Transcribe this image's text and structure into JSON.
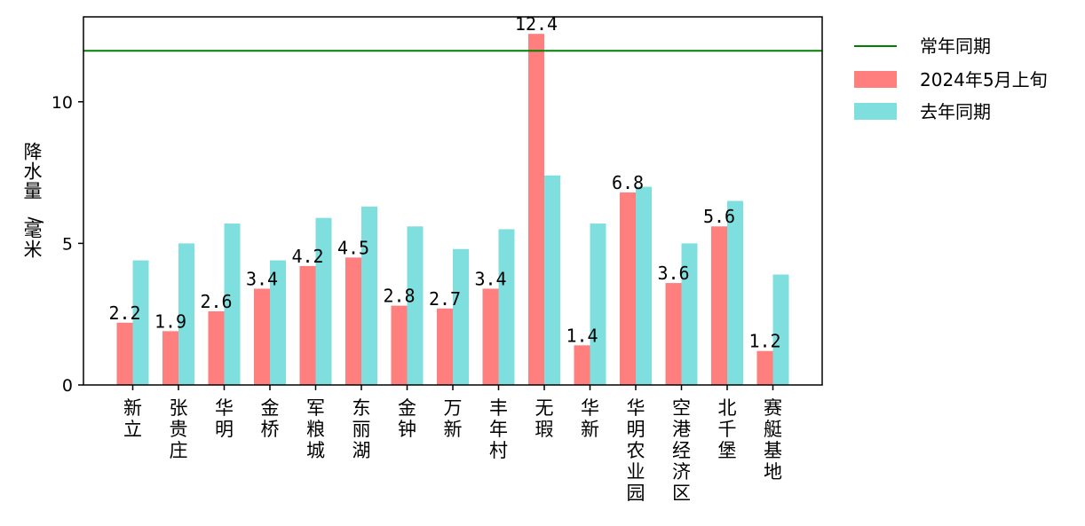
{
  "chart_data": {
    "type": "bar",
    "ylabel": "降水量/毫米",
    "xlabel": "",
    "ylim": [
      0,
      13
    ],
    "yticks": [
      0,
      5,
      10
    ],
    "categories": [
      "新立",
      "张贵庄",
      "华明",
      "金桥",
      "军粮城",
      "东丽湖",
      "金钟",
      "万新",
      "丰年村",
      "无瑕",
      "华新",
      "华明农业园",
      "空港经济区",
      "北千堡",
      "赛艇基地"
    ],
    "series": [
      {
        "name": "2024年5月上旬",
        "color": "#ff7f7f",
        "values": [
          2.2,
          1.9,
          2.6,
          3.4,
          4.2,
          4.5,
          2.8,
          2.7,
          3.4,
          12.4,
          1.4,
          6.8,
          3.6,
          5.6,
          1.2
        ],
        "data_labels": [
          "2.2",
          "1.9",
          "2.6",
          "3.4",
          "4.2",
          "4.5",
          "2.8",
          "2.7",
          "3.4",
          "12.4",
          "1.4",
          "6.8",
          "3.6",
          "5.6",
          "1.2"
        ]
      },
      {
        "name": "去年同期",
        "color": "#7fdfdf",
        "values": [
          4.4,
          5.0,
          5.7,
          4.4,
          5.9,
          6.3,
          5.6,
          4.8,
          5.5,
          7.4,
          5.7,
          7.0,
          5.0,
          6.5,
          3.9
        ]
      }
    ],
    "reference_line": {
      "name": "常年同期",
      "value": 11.8,
      "color": "#008000"
    },
    "legend": {
      "placement": "outside-top-right",
      "entries": [
        "常年同期",
        "2024年5月上旬",
        "去年同期"
      ]
    },
    "grid": false
  }
}
